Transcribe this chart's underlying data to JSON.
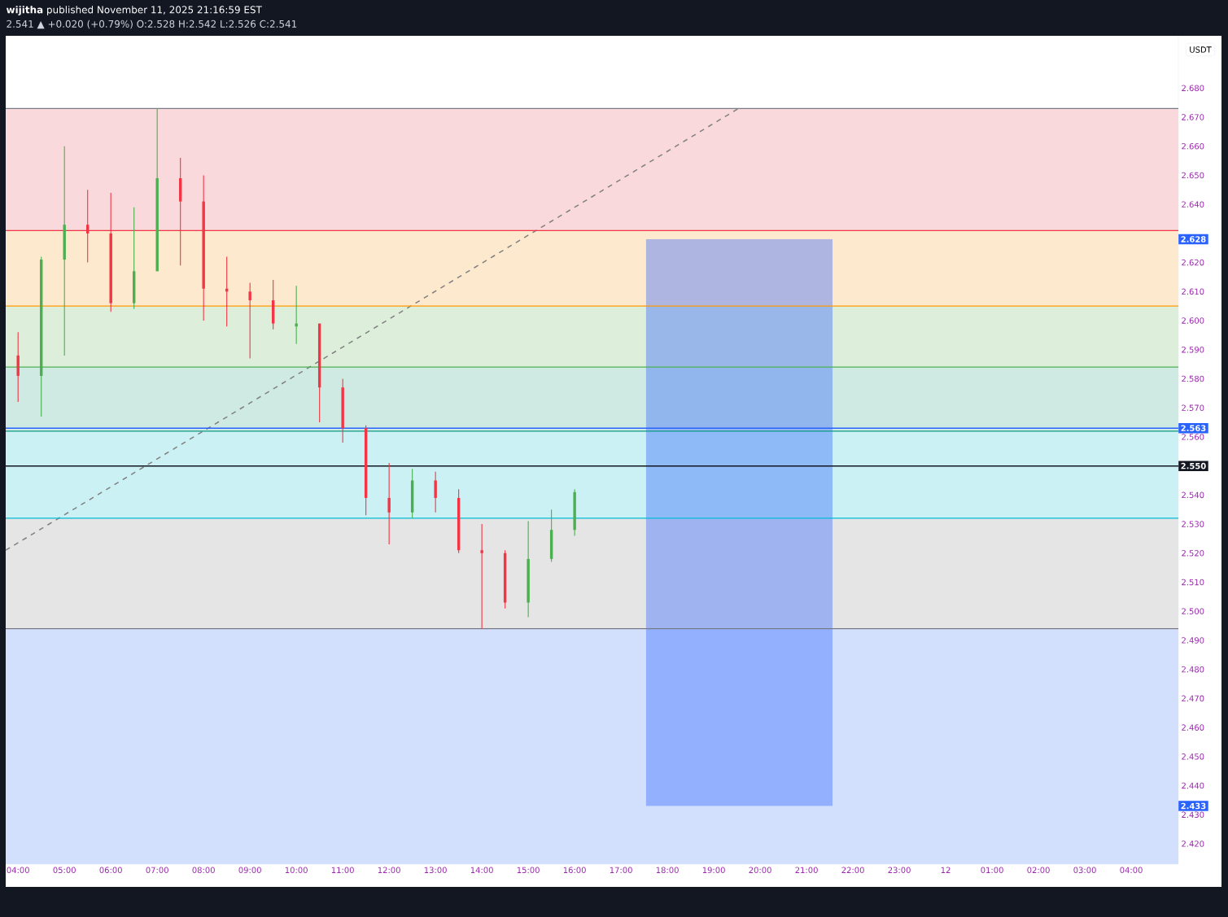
{
  "chart_data": {
    "type": "candlestick",
    "title": "**wijitha** published November 11, 2025 21:16:59 EST",
    "subtitle": "2.541 ▲ +0.020 (+0.79%) O:2.528 H:2.542 L:2.526 C:2.541",
    "ylabel": "USDT",
    "x": [
      "2025-11-11T04:00",
      "2025-11-11T04:30",
      "2025-11-11T05:00",
      "2025-11-11T05:30",
      "2025-11-11T06:00",
      "2025-11-11T06:30",
      "2025-11-11T07:00",
      "2025-11-11T07:30",
      "2025-11-11T08:00",
      "2025-11-11T08:30",
      "2025-11-11T09:00",
      "2025-11-11T09:30",
      "2025-11-11T10:00",
      "2025-11-11T10:30",
      "2025-11-11T11:00",
      "2025-11-11T11:30",
      "2025-11-11T12:00",
      "2025-11-11T12:30",
      "2025-11-11T13:00",
      "2025-11-11T13:30",
      "2025-11-11T14:00",
      "2025-11-11T14:30",
      "2025-11-11T15:00",
      "2025-11-11T15:30",
      "2025-11-11T16:00"
    ],
    "ohlc": [
      [
        2.588,
        2.596,
        2.572,
        2.581
      ],
      [
        2.581,
        2.622,
        2.567,
        2.621
      ],
      [
        2.621,
        2.66,
        2.588,
        2.633
      ],
      [
        2.633,
        2.645,
        2.62,
        2.63
      ],
      [
        2.63,
        2.644,
        2.603,
        2.606
      ],
      [
        2.606,
        2.639,
        2.604,
        2.617
      ],
      [
        2.617,
        2.673,
        2.617,
        2.649
      ],
      [
        2.649,
        2.656,
        2.619,
        2.641
      ],
      [
        2.641,
        2.65,
        2.6,
        2.611
      ],
      [
        2.611,
        2.622,
        2.598,
        2.61
      ],
      [
        2.61,
        2.613,
        2.587,
        2.607
      ],
      [
        2.607,
        2.614,
        2.597,
        2.599
      ],
      [
        2.598,
        2.612,
        2.592,
        2.599
      ],
      [
        2.599,
        2.599,
        2.565,
        2.577
      ],
      [
        2.577,
        2.58,
        2.558,
        2.563
      ],
      [
        2.563,
        2.564,
        2.533,
        2.539
      ],
      [
        2.539,
        2.551,
        2.523,
        2.534
      ],
      [
        2.534,
        2.549,
        2.532,
        2.545
      ],
      [
        2.545,
        2.548,
        2.534,
        2.539
      ],
      [
        2.539,
        2.542,
        2.52,
        2.521
      ],
      [
        2.521,
        2.53,
        2.494,
        2.52
      ],
      [
        2.52,
        2.521,
        2.501,
        2.503
      ],
      [
        2.503,
        2.531,
        2.498,
        2.518
      ],
      [
        2.518,
        2.535,
        2.517,
        2.528
      ],
      [
        2.528,
        2.542,
        2.526,
        2.541
      ]
    ],
    "colors": [
      "#f23645",
      "#4caf50",
      "#4caf50",
      "#f23645",
      "#f23645",
      "#4caf50",
      "#4caf50",
      "#f23645",
      "#f23645",
      "#f23645",
      "#f23645",
      "#f23645",
      "#4caf50",
      "#f23645",
      "#f23645",
      "#f23645",
      "#f23645",
      "#4caf50",
      "#f23645",
      "#f23645",
      "#f23645",
      "#f23645",
      "#4caf50",
      "#4caf50",
      "#4caf50"
    ],
    "series": [
      {
        "type": "line",
        "x": [
          "2025-11-11T03:44",
          "2025-11-11T19:32"
        ],
        "values": [
          2.521,
          2.673
        ],
        "color": "#808080",
        "line_style": "dashed"
      },
      {
        "type": "bar",
        "x": [
          "2025-11-11T19:33"
        ],
        "base": [
          2.433
        ],
        "values": [
          0.195
        ],
        "color": "#2962ff"
      }
    ],
    "bands": [
      {
        "axis": "y",
        "from": 2.631,
        "to": 2.673,
        "color": "#f9d9dc"
      },
      {
        "axis": "y",
        "from": 2.605,
        "to": 2.631,
        "color": "#fde9cd"
      },
      {
        "axis": "y",
        "from": 2.584,
        "to": 2.605,
        "color": "#ddeedb"
      },
      {
        "axis": "y",
        "from": 2.562,
        "to": 2.584,
        "color": "#cfeae3"
      },
      {
        "axis": "y",
        "from": 2.532,
        "to": 2.562,
        "color": "#ccf1f4"
      },
      {
        "axis": "y",
        "from": 2.494,
        "to": 2.532,
        "color": "#e5e5e5"
      },
      {
        "axis": "y",
        "from": 2.413,
        "to": 2.494,
        "color": "#d3e0fd"
      }
    ],
    "ref_lines": [
      {
        "axis": "y",
        "value": 2.673,
        "color": "#787b86"
      },
      {
        "axis": "y",
        "value": 2.631,
        "color": "#f23645"
      },
      {
        "axis": "y",
        "value": 2.605,
        "color": "#ff9800"
      },
      {
        "axis": "y",
        "value": 2.584,
        "color": "#4caf50"
      },
      {
        "axis": "y",
        "value": 2.562,
        "color": "#089981"
      },
      {
        "axis": "y",
        "value": 2.532,
        "color": "#00bcd4"
      },
      {
        "axis": "y",
        "value": 2.494,
        "color": "#787b86"
      },
      {
        "axis": "y",
        "value": 2.563,
        "color": "#2962ff",
        "label": "2.563"
      },
      {
        "axis": "y",
        "value": 2.55,
        "color": "#131722",
        "label": "2.550"
      }
    ],
    "annotations": [
      {
        "text": "2.628",
        "x": "2025-11-12T05:01",
        "y": 2.628
      },
      {
        "text": "2.433",
        "x": "2025-11-12T05:01",
        "y": 2.433
      }
    ],
    "xlim": [
      "2025-11-11T03:44",
      "2025-11-12T05:01"
    ],
    "ylim": [
      2.413,
      2.698
    ],
    "xticks": [
      {
        "value": "2025-11-11T04:00",
        "label": "04:00"
      },
      {
        "value": "2025-11-11T05:00",
        "label": "05:00"
      },
      {
        "value": "2025-11-11T06:00",
        "label": "06:00"
      },
      {
        "value": "2025-11-11T07:00",
        "label": "07:00"
      },
      {
        "value": "2025-11-11T08:00",
        "label": "08:00"
      },
      {
        "value": "2025-11-11T09:00",
        "label": "09:00"
      },
      {
        "value": "2025-11-11T10:00",
        "label": "10:00"
      },
      {
        "value": "2025-11-11T11:00",
        "label": "11:00"
      },
      {
        "value": "2025-11-11T12:00",
        "label": "12:00"
      },
      {
        "value": "2025-11-11T13:00",
        "label": "13:00"
      },
      {
        "value": "2025-11-11T14:00",
        "label": "14:00"
      },
      {
        "value": "2025-11-11T15:00",
        "label": "15:00"
      },
      {
        "value": "2025-11-11T16:00",
        "label": "16:00"
      },
      {
        "value": "2025-11-11T17:00",
        "label": "17:00"
      },
      {
        "value": "2025-11-11T18:00",
        "label": "18:00"
      },
      {
        "value": "2025-11-11T19:00",
        "label": "19:00"
      },
      {
        "value": "2025-11-11T20:00",
        "label": "20:00"
      },
      {
        "value": "2025-11-11T21:00",
        "label": "21:00"
      },
      {
        "value": "2025-11-11T22:00",
        "label": "22:00"
      },
      {
        "value": "2025-11-11T23:00",
        "label": "23:00"
      },
      {
        "value": "2025-11-12T00:00",
        "label": "12"
      },
      {
        "value": "2025-11-12T01:00",
        "label": "01:00"
      },
      {
        "value": "2025-11-12T02:00",
        "label": "02:00"
      },
      {
        "value": "2025-11-12T03:00",
        "label": "03:00"
      },
      {
        "value": "2025-11-12T04:00",
        "label": "04:00"
      }
    ],
    "yticks": [
      {
        "value": 2.42,
        "label": "2.420"
      },
      {
        "value": 2.43,
        "label": "2.430"
      },
      {
        "value": 2.44,
        "label": "2.440"
      },
      {
        "value": 2.45,
        "label": "2.450"
      },
      {
        "value": 2.46,
        "label": "2.460"
      },
      {
        "value": 2.47,
        "label": "2.470"
      },
      {
        "value": 2.48,
        "label": "2.480"
      },
      {
        "value": 2.49,
        "label": "2.490"
      },
      {
        "value": 2.5,
        "label": "2.500"
      },
      {
        "value": 2.51,
        "label": "2.510"
      },
      {
        "value": 2.52,
        "label": "2.520"
      },
      {
        "value": 2.53,
        "label": "2.530"
      },
      {
        "value": 2.54,
        "label": "2.540"
      },
      {
        "value": 2.55,
        "label": null
      },
      {
        "value": 2.56,
        "label": "2.560"
      },
      {
        "value": 2.57,
        "label": "2.570"
      },
      {
        "value": 2.58,
        "label": "2.580"
      },
      {
        "value": 2.59,
        "label": "2.590"
      },
      {
        "value": 2.6,
        "label": "2.600"
      },
      {
        "value": 2.61,
        "label": "2.610"
      },
      {
        "value": 2.62,
        "label": "2.620"
      },
      {
        "value": 2.63,
        "label": null
      },
      {
        "value": 2.64,
        "label": "2.640"
      },
      {
        "value": 2.65,
        "label": "2.650"
      },
      {
        "value": 2.66,
        "label": "2.660"
      },
      {
        "value": 2.67,
        "label": "2.670"
      },
      {
        "value": 2.68,
        "label": "2.680"
      }
    ]
  }
}
